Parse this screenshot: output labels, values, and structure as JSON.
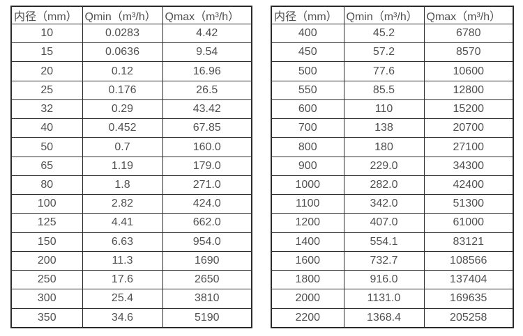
{
  "page": {
    "background_color": "#ffffff",
    "border_color": "#2b2b2b",
    "text_color": "#505050"
  },
  "chart_data": [
    {
      "type": "table",
      "title": "",
      "columns": [
        "内径（mm）",
        "Qmin（m³/h）",
        "Qmax（m³/h）"
      ],
      "rows": [
        [
          "10",
          "0.0283",
          "4.42"
        ],
        [
          "15",
          "0.0636",
          "9.54"
        ],
        [
          "20",
          "0.12",
          "16.96"
        ],
        [
          "25",
          "0.176",
          "26.5"
        ],
        [
          "32",
          "0.29",
          "43.42"
        ],
        [
          "40",
          "0.452",
          "67.85"
        ],
        [
          "50",
          "0.7",
          "160.0"
        ],
        [
          "65",
          "1.19",
          "179.0"
        ],
        [
          "80",
          "1.8",
          "271.0"
        ],
        [
          "100",
          "2.82",
          "424.0"
        ],
        [
          "125",
          "4.41",
          "662.0"
        ],
        [
          "150",
          "6.63",
          "954.0"
        ],
        [
          "200",
          "11.3",
          "1690"
        ],
        [
          "250",
          "17.6",
          "2650"
        ],
        [
          "300",
          "25.4",
          "3810"
        ],
        [
          "350",
          "34.6",
          "5190"
        ]
      ]
    },
    {
      "type": "table",
      "title": "",
      "columns": [
        "内径（mm）",
        "Qmin（m³/h）",
        "Qmax（m³/h）"
      ],
      "rows": [
        [
          "400",
          "45.2",
          "6780"
        ],
        [
          "450",
          "57.2",
          "8570"
        ],
        [
          "500",
          "77.6",
          "10600"
        ],
        [
          "550",
          "85.5",
          "12800"
        ],
        [
          "600",
          "110",
          "15200"
        ],
        [
          "700",
          "138",
          "20700"
        ],
        [
          "800",
          "180",
          "27100"
        ],
        [
          "900",
          "229.0",
          "34300"
        ],
        [
          "1000",
          "282.0",
          "42400"
        ],
        [
          "1100",
          "342.0",
          "51300"
        ],
        [
          "1200",
          "407.0",
          "61000"
        ],
        [
          "1400",
          "554.1",
          "83121"
        ],
        [
          "1600",
          "732.7",
          "108566"
        ],
        [
          "1800",
          "916.0",
          "137404"
        ],
        [
          "2000",
          "1131.0",
          "169635"
        ],
        [
          "2200",
          "1368.4",
          "205258"
        ]
      ]
    }
  ]
}
